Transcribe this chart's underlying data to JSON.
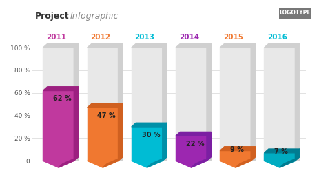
{
  "title_bold": "Project",
  "title_italic": "Infographic",
  "logotype": "LOGOTYPE",
  "years": [
    "2011",
    "2012",
    "2013",
    "2014",
    "2015",
    "2016"
  ],
  "values": [
    62,
    47,
    30,
    22,
    9,
    7
  ],
  "bar_colors": [
    "#c0399e",
    "#f07830",
    "#00bcd4",
    "#9c27b0",
    "#f07830",
    "#00acc1"
  ],
  "bar_dark_colors": [
    "#9c2080",
    "#d06020",
    "#0090a8",
    "#7b1fa2",
    "#d06020",
    "#007c91"
  ],
  "year_colors": [
    "#c0399e",
    "#f07830",
    "#00bcd4",
    "#9c27b0",
    "#f07830",
    "#00bcd4"
  ],
  "bg_bar_color": "#e8e8e8",
  "bg_bar_dark_color": "#d0d0d0",
  "max_val": 100,
  "yticks": [
    0,
    20,
    40,
    60,
    80,
    100
  ],
  "ytick_labels": [
    "0",
    "20 %",
    "40 %",
    "60 %",
    "80 %",
    "100 %"
  ],
  "background_color": "#ffffff",
  "chart_bg_color": "#f5f5f5"
}
